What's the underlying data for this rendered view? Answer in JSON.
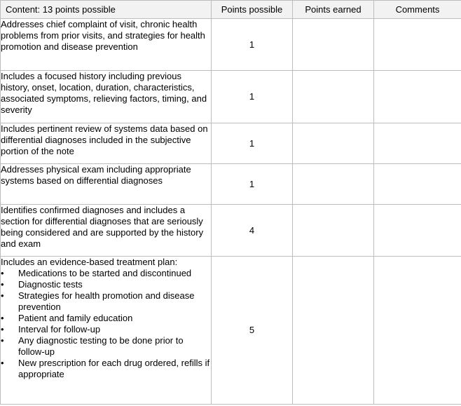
{
  "table": {
    "headers": [
      "Content: 13 points possible",
      "Points possible",
      "Points earned",
      "Comments"
    ],
    "rows": [
      {
        "criterion": "Addresses chief complaint of visit, chronic health problems from prior visits, and strategies for health promotion and disease prevention",
        "points_possible": "1",
        "points_earned": "",
        "comments": ""
      },
      {
        "criterion": "Includes a focused history including previous history, onset, location, duration, characteristics, associated symptoms, relieving factors, timing, and severity",
        "points_possible": "1",
        "points_earned": "",
        "comments": ""
      },
      {
        "criterion": "Includes pertinent review of systems data based on differential diagnoses included in the subjective portion of the note",
        "points_possible": "1",
        "points_earned": "",
        "comments": ""
      },
      {
        "criterion": "Addresses physical exam including appropriate systems based on differential diagnoses",
        "points_possible": "1",
        "points_earned": "",
        "comments": ""
      },
      {
        "criterion": "Identifies confirmed diagnoses and includes a section for differential diagnoses that are seriously being considered and are supported by the history and exam",
        "points_possible": "4",
        "points_earned": "",
        "comments": ""
      },
      {
        "criterion": "Includes an evidence-based treatment plan:",
        "bullets": [
          "Medications to be started and discontinued",
          "Diagnostic tests",
          "Strategies for health promotion and disease prevention",
          "Patient and family education",
          "Interval for follow-up",
          "Any diagnostic testing to be done prior to follow-up",
          "New prescription for each drug ordered, refills if appropriate"
        ],
        "points_possible": "5",
        "points_earned": "",
        "comments": ""
      }
    ]
  }
}
